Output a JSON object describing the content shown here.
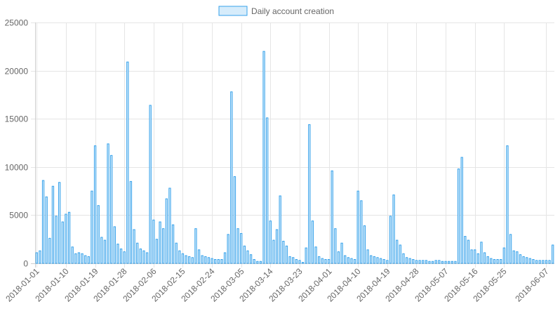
{
  "chart_data": {
    "type": "bar",
    "title": "",
    "xlabel": "",
    "ylabel": "",
    "legend": {
      "position": "top-center",
      "label": "Daily account creation"
    },
    "colors": {
      "bar_fill": "#d6ecfb",
      "bar_stroke": "#36a2eb",
      "grid": "#e5e5e5",
      "tick_text": "#666666"
    },
    "grid": true,
    "ylim": [
      0,
      25000
    ],
    "y_ticks": [
      "0",
      "5000",
      "10000",
      "15000",
      "20000",
      "25000"
    ],
    "x_ticks": [
      "2018-01-01",
      "2018-01-10",
      "2018-01-19",
      "2018-01-28",
      "2018-02-06",
      "2018-02-15",
      "2018-02-24",
      "2018-03-05",
      "2018-03-14",
      "2018-03-23",
      "2018-04-01",
      "2018-04-10",
      "2018-04-19",
      "2018-04-28",
      "2018-05-07",
      "2018-05-16",
      "2018-05-25",
      "2018-06-07"
    ],
    "series": [
      {
        "name": "Daily account creation",
        "x_start": "2018-01-01",
        "x_end": "2018-06-07",
        "values": [
          1100,
          1300,
          8600,
          6900,
          2600,
          8000,
          4900,
          8400,
          4300,
          5100,
          5300,
          1700,
          1000,
          1100,
          1000,
          800,
          700,
          7500,
          12200,
          6000,
          2700,
          2400,
          12400,
          11200,
          3800,
          2000,
          1500,
          1200,
          20900,
          8500,
          3500,
          2100,
          1500,
          1300,
          1100,
          16400,
          4500,
          2500,
          4300,
          3600,
          6700,
          7800,
          4000,
          2100,
          1300,
          1000,
          800,
          700,
          600,
          3600,
          1400,
          800,
          700,
          600,
          500,
          400,
          400,
          400,
          1100,
          3000,
          17800,
          9000,
          3600,
          3100,
          1800,
          1300,
          900,
          400,
          200,
          200,
          22000,
          15100,
          4400,
          2400,
          3500,
          7000,
          2300,
          1800,
          700,
          600,
          400,
          300,
          100,
          1600,
          14400,
          4400,
          1700,
          700,
          500,
          400,
          400,
          9600,
          3600,
          1200,
          2100,
          800,
          600,
          500,
          400,
          7500,
          6500,
          3900,
          1400,
          800,
          700,
          600,
          500,
          400,
          300,
          4900,
          7100,
          2400,
          1900,
          1000,
          600,
          500,
          400,
          300,
          300,
          300,
          300,
          200,
          200,
          300,
          300,
          200,
          200,
          200,
          200,
          200,
          9800,
          11000,
          2800,
          2400,
          1400,
          1400,
          1000,
          2200,
          1100,
          700,
          500,
          400,
          400,
          400,
          1600,
          12200,
          3000,
          1300,
          1200,
          900,
          700,
          600,
          500,
          400,
          300,
          300,
          300,
          300,
          300,
          1900
        ]
      }
    ]
  }
}
